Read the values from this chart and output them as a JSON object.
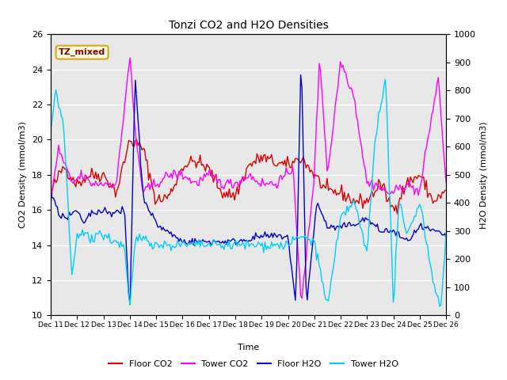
{
  "title": "Tonzi CO2 and H2O Densities",
  "xlabel": "Time",
  "ylabel_left": "CO2 Density (mmol/m3)",
  "ylabel_right": "H2O Density (mmol/m3)",
  "annotation": "TZ_mixed",
  "ylim_left": [
    10,
    26
  ],
  "ylim_right": [
    0,
    1000
  ],
  "yticks_left": [
    10,
    12,
    14,
    16,
    18,
    20,
    22,
    24,
    26
  ],
  "yticks_right": [
    0,
    100,
    200,
    300,
    400,
    500,
    600,
    700,
    800,
    900,
    1000
  ],
  "background_color": "#e8e8e8",
  "colors": {
    "floor_co2": "#dd0000",
    "tower_co2": "#ff00ff",
    "floor_h2o": "#0000cc",
    "tower_h2o": "#00ccff"
  },
  "x_tick_labels": [
    "Dec 11",
    "Dec 12",
    "Dec 13",
    "Dec 14",
    "Dec 15",
    "Dec 16",
    "Dec 17",
    "Dec 18",
    "Dec 19",
    "Dec 20",
    "Dec 21",
    "Dec 22",
    "Dec 23",
    "Dec 24",
    "Dec 25",
    "Dec 26"
  ],
  "n_points": 300
}
